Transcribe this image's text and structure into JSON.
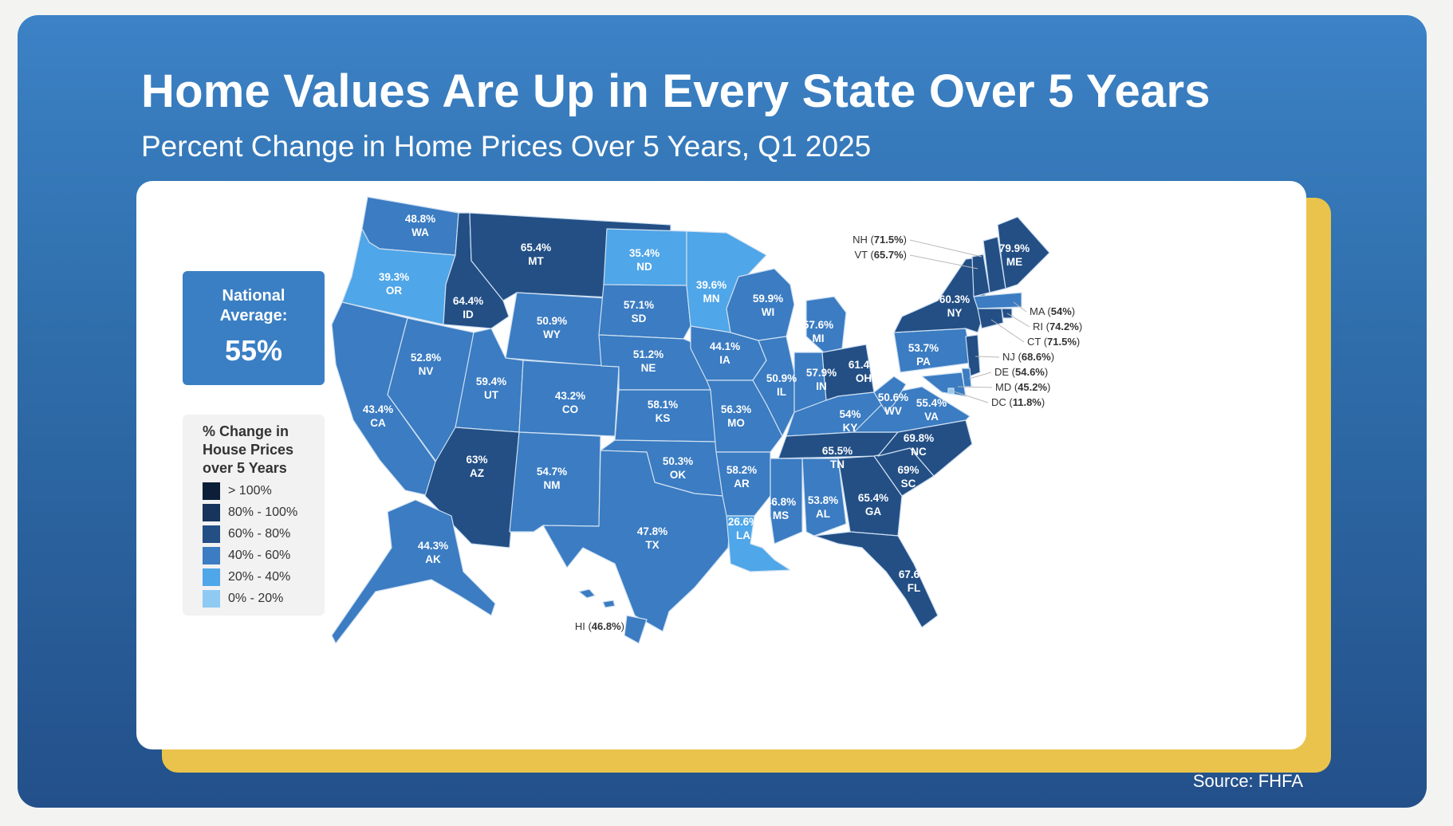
{
  "title": "Home Values Are Up in Every State Over 5 Years",
  "subtitle": "Percent Change in Home Prices Over 5 Years, Q1 2025",
  "source": "Source: FHFA",
  "national_average": {
    "label": "National Average:",
    "value": "55%"
  },
  "legend": {
    "title": "% Change in House Prices over 5 Years",
    "items": [
      {
        "label": "> 100%",
        "color": "#0d1f38"
      },
      {
        "label": "80% - 100%",
        "color": "#17345c"
      },
      {
        "label": "60% - 80%",
        "color": "#234f85"
      },
      {
        "label": "40% - 60%",
        "color": "#3b7cc2"
      },
      {
        "label": "20% - 40%",
        "color": "#4fa6e8"
      },
      {
        "label": "0% - 20%",
        "color": "#8fcaf3"
      }
    ]
  },
  "states": [
    {
      "abbr": "WA",
      "value": "48.8%",
      "pct": 48.8
    },
    {
      "abbr": "OR",
      "value": "39.3%",
      "pct": 39.3
    },
    {
      "abbr": "CA",
      "value": "43.4%",
      "pct": 43.4
    },
    {
      "abbr": "NV",
      "value": "52.8%",
      "pct": 52.8
    },
    {
      "abbr": "ID",
      "value": "64.4%",
      "pct": 64.4
    },
    {
      "abbr": "MT",
      "value": "65.4%",
      "pct": 65.4
    },
    {
      "abbr": "WY",
      "value": "50.9%",
      "pct": 50.9
    },
    {
      "abbr": "UT",
      "value": "59.4%",
      "pct": 59.4
    },
    {
      "abbr": "AZ",
      "value": "63%",
      "pct": 63
    },
    {
      "abbr": "CO",
      "value": "43.2%",
      "pct": 43.2
    },
    {
      "abbr": "NM",
      "value": "54.7%",
      "pct": 54.7
    },
    {
      "abbr": "ND",
      "value": "35.4%",
      "pct": 35.4
    },
    {
      "abbr": "SD",
      "value": "57.1%",
      "pct": 57.1
    },
    {
      "abbr": "NE",
      "value": "51.2%",
      "pct": 51.2
    },
    {
      "abbr": "KS",
      "value": "58.1%",
      "pct": 58.1
    },
    {
      "abbr": "OK",
      "value": "50.3%",
      "pct": 50.3
    },
    {
      "abbr": "TX",
      "value": "47.8%",
      "pct": 47.8
    },
    {
      "abbr": "MN",
      "value": "39.6%",
      "pct": 39.6
    },
    {
      "abbr": "IA",
      "value": "44.1%",
      "pct": 44.1
    },
    {
      "abbr": "MO",
      "value": "56.3%",
      "pct": 56.3
    },
    {
      "abbr": "AR",
      "value": "58.2%",
      "pct": 58.2
    },
    {
      "abbr": "LA",
      "value": "26.6%",
      "pct": 26.6
    },
    {
      "abbr": "WI",
      "value": "59.9%",
      "pct": 59.9
    },
    {
      "abbr": "IL",
      "value": "50.9%",
      "pct": 50.9
    },
    {
      "abbr": "MI",
      "value": "57.6%",
      "pct": 57.6
    },
    {
      "abbr": "IN",
      "value": "57.9%",
      "pct": 57.9
    },
    {
      "abbr": "OH",
      "value": "61.4%",
      "pct": 61.4
    },
    {
      "abbr": "KY",
      "value": "54%",
      "pct": 54
    },
    {
      "abbr": "TN",
      "value": "65.5%",
      "pct": 65.5
    },
    {
      "abbr": "MS",
      "value": "46.8%",
      "pct": 46.8
    },
    {
      "abbr": "AL",
      "value": "53.8%",
      "pct": 53.8
    },
    {
      "abbr": "GA",
      "value": "65.4%",
      "pct": 65.4
    },
    {
      "abbr": "FL",
      "value": "67.6%",
      "pct": 67.6
    },
    {
      "abbr": "SC",
      "value": "69%",
      "pct": 69
    },
    {
      "abbr": "NC",
      "value": "69.8%",
      "pct": 69.8
    },
    {
      "abbr": "VA",
      "value": "55.4%",
      "pct": 55.4
    },
    {
      "abbr": "WV",
      "value": "50.6%",
      "pct": 50.6
    },
    {
      "abbr": "PA",
      "value": "53.7%",
      "pct": 53.7
    },
    {
      "abbr": "NY",
      "value": "60.3%",
      "pct": 60.3
    },
    {
      "abbr": "ME",
      "value": "79.9%",
      "pct": 79.9
    },
    {
      "abbr": "AK",
      "value": "44.3%",
      "pct": 44.3
    },
    {
      "abbr": "HI",
      "value": "46.8%",
      "pct": 46.8
    },
    {
      "abbr": "NH",
      "value": "71.5%",
      "pct": 71.5
    },
    {
      "abbr": "VT",
      "value": "65.7%",
      "pct": 65.7
    },
    {
      "abbr": "MA",
      "value": "54%",
      "pct": 54
    },
    {
      "abbr": "RI",
      "value": "74.2%",
      "pct": 74.2
    },
    {
      "abbr": "CT",
      "value": "71.5%",
      "pct": 71.5
    },
    {
      "abbr": "NJ",
      "value": "68.6%",
      "pct": 68.6
    },
    {
      "abbr": "DE",
      "value": "54.6%",
      "pct": 54.6
    },
    {
      "abbr": "MD",
      "value": "45.2%",
      "pct": 45.2
    },
    {
      "abbr": "DC",
      "value": "11.8%",
      "pct": 11.8
    }
  ]
}
